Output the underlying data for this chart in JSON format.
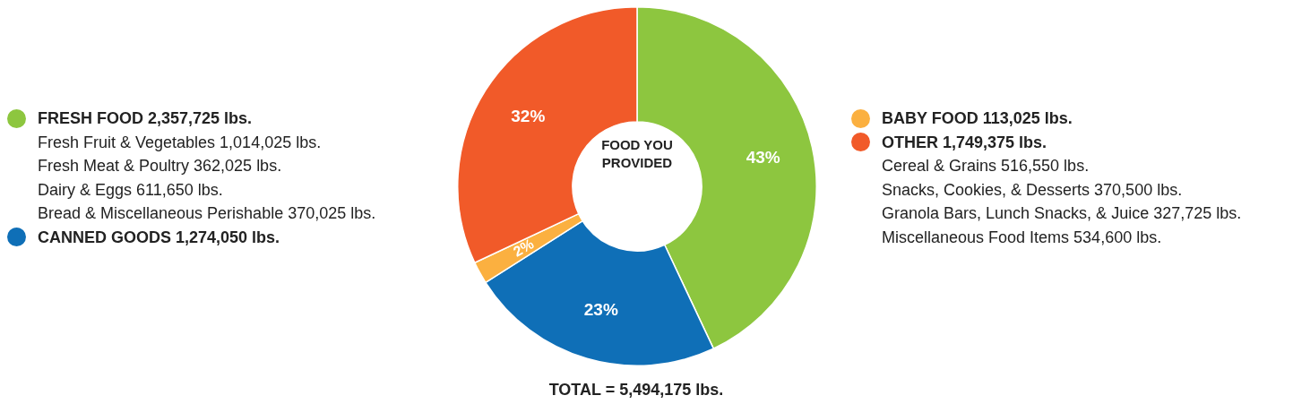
{
  "chart_data": {
    "type": "donut",
    "title": "FOOD YOU PROVIDED",
    "subtitle": "TOTAL = 5,494,175 lbs.",
    "categories": [
      "FRESH FOOD 2,357,725 lbs.",
      "CANNED GOODS 1,274,050 lbs.",
      "BABY FOOD 113,025 lbs.",
      "OTHER 1,749,375 lbs."
    ],
    "values": [
      43,
      23,
      2,
      32
    ],
    "colors": [
      "#8dc63f",
      "#0f6fb7",
      "#fbb040",
      "#f15a29"
    ],
    "value_labels": [
      "43%",
      "23%",
      "2%",
      "32%"
    ],
    "legend": "left",
    "annotations": [
      "Fresh Fruit & Vegetables 1,014,025 lbs.",
      "Fresh Meat & Poultry 362,025 lbs.",
      "Dairy & Eggs 611,650 lbs.",
      "Bread & Miscellaneous Perishable 370,025 lbs.",
      "Cereal & Grains 516,550 lbs.",
      "Snacks, Cookies, & Desserts 370,500 lbs.",
      "Granola Bars, Lunch Snacks, & Juice 327,725 lbs.",
      "Miscellaneous Food Items 534,600 lbs."
    ]
  }
}
